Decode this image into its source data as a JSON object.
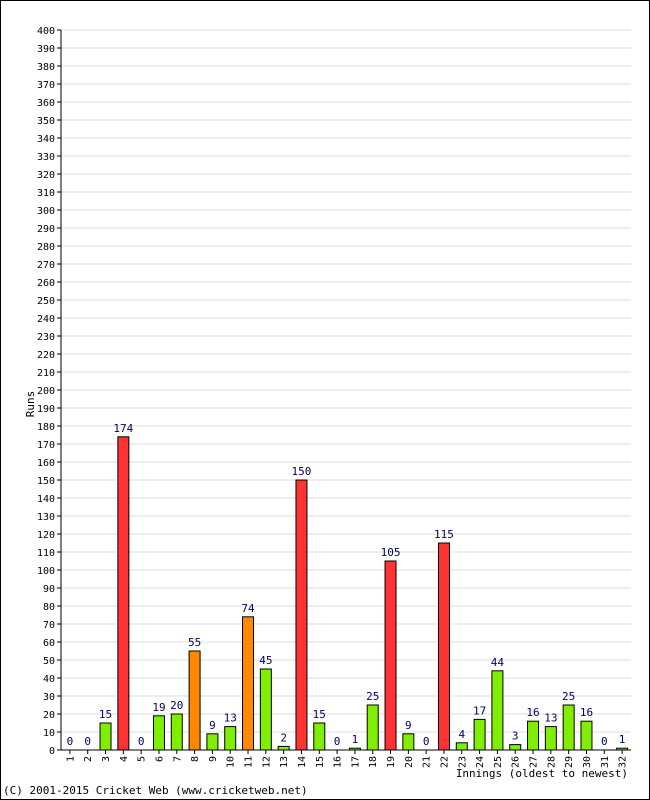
{
  "chart_data": {
    "type": "bar",
    "xlabel": "Innings (oldest to newest)",
    "ylabel": "Runs",
    "ylim": [
      0,
      400
    ],
    "ytick_step": 10,
    "grid": true,
    "categories": [
      "1",
      "2",
      "3",
      "4",
      "5",
      "6",
      "7",
      "8",
      "9",
      "10",
      "11",
      "12",
      "13",
      "14",
      "15",
      "16",
      "17",
      "18",
      "19",
      "20",
      "21",
      "22",
      "23",
      "24",
      "25",
      "26",
      "27",
      "28",
      "29",
      "30",
      "31",
      "32"
    ],
    "values": [
      0,
      0,
      15,
      174,
      0,
      19,
      20,
      55,
      9,
      13,
      74,
      45,
      2,
      150,
      15,
      0,
      1,
      25,
      105,
      9,
      0,
      115,
      4,
      17,
      44,
      3,
      16,
      13,
      25,
      16,
      0,
      1
    ],
    "colors": {
      "below_50": "#80ee00",
      "fifty": "#ff8800",
      "hundred": "#ff3333",
      "label": "#000066",
      "grid": "#dddddd"
    }
  },
  "footer": {
    "copyright": "(C) 2001-2015 Cricket Web (www.cricketweb.net)"
  }
}
